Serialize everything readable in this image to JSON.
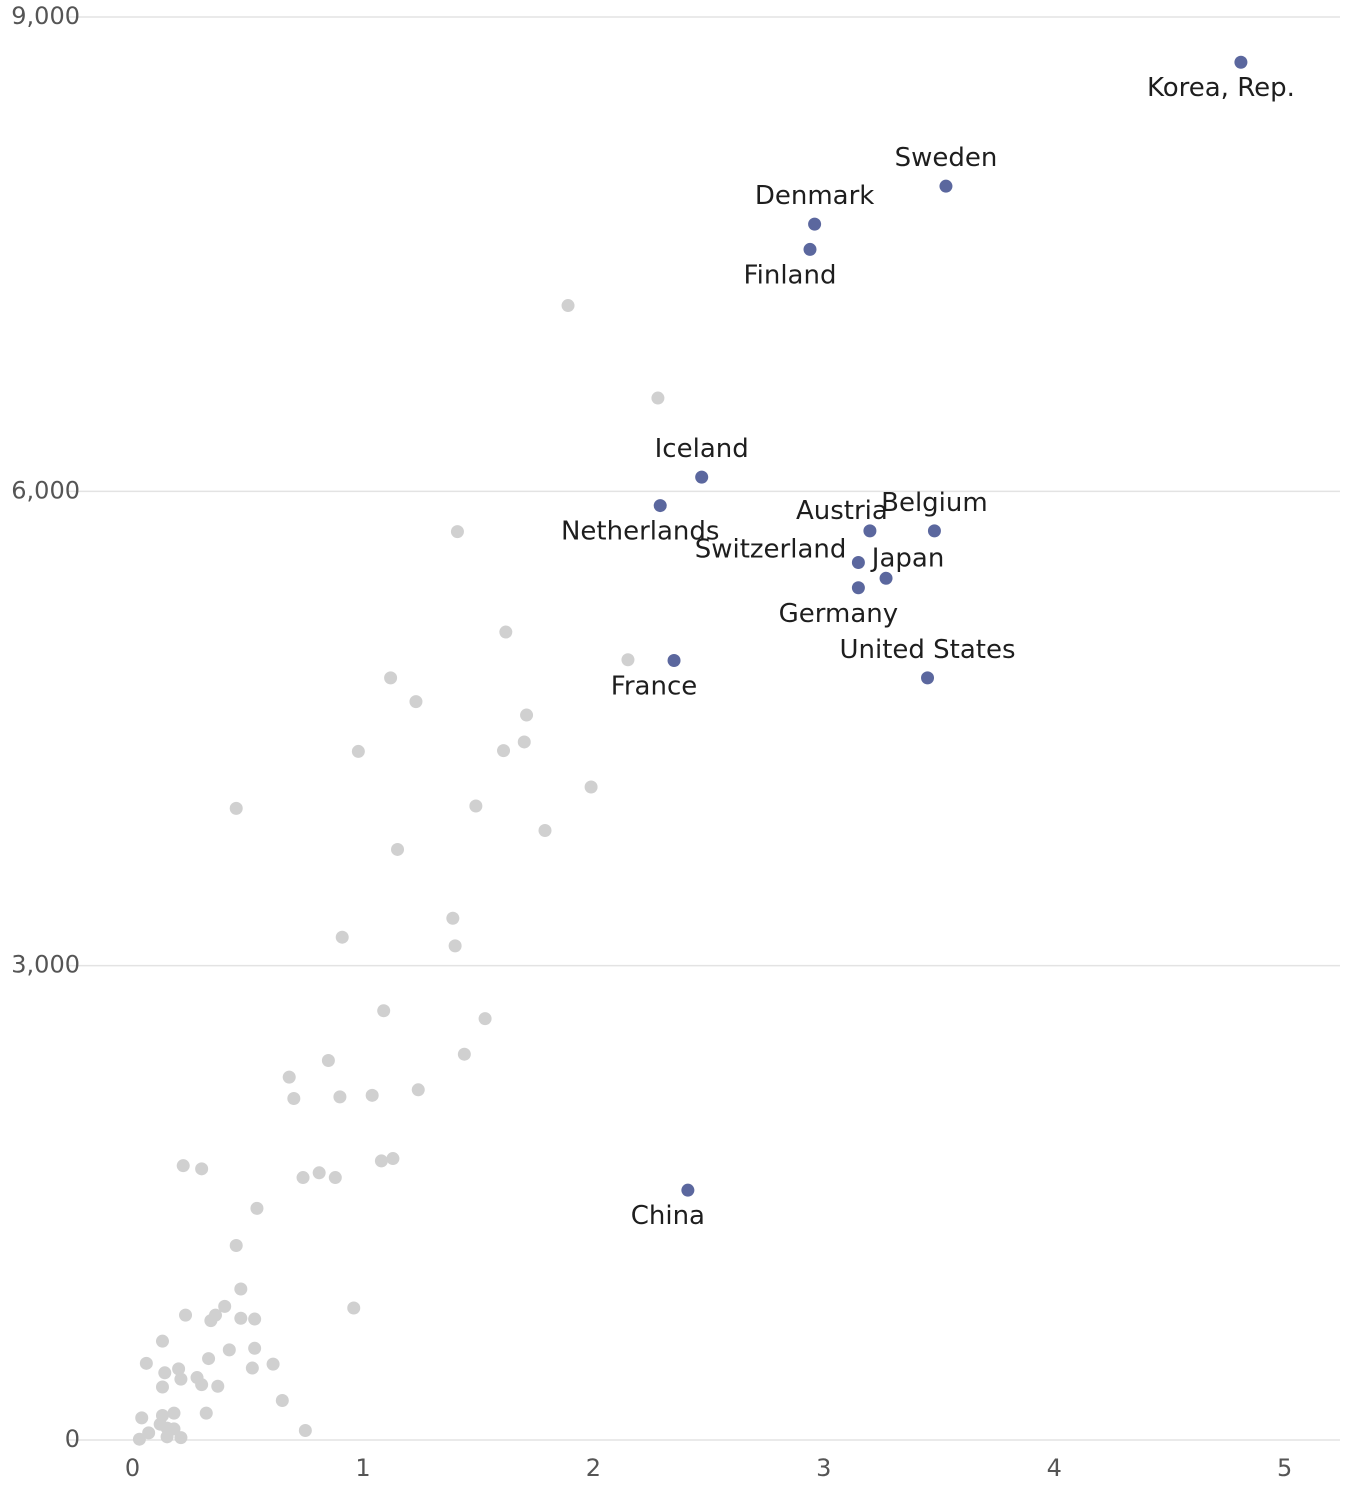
{
  "chart_data": {
    "type": "scatter",
    "title": "",
    "xlabel": "",
    "ylabel": "",
    "xlim": [
      -0.28,
      5.24
    ],
    "ylim": [
      0,
      9000
    ],
    "x_ticks": [
      {
        "value": 0,
        "label": "0"
      },
      {
        "value": 1,
        "label": "1"
      },
      {
        "value": 2,
        "label": "2"
      },
      {
        "value": 3,
        "label": "3"
      },
      {
        "value": 4,
        "label": "4"
      },
      {
        "value": 5,
        "label": "5"
      }
    ],
    "y_ticks": [
      {
        "value": 0,
        "label": "0"
      },
      {
        "value": 3000,
        "label": "3,000"
      },
      {
        "value": 6000,
        "label": "6,000"
      },
      {
        "value": 9000,
        "label": "9,000"
      }
    ],
    "grid": "horizontal",
    "colors": {
      "highlight": "#5b679e",
      "other": "#d0d0d0",
      "gridline": "#e3e3e3",
      "tick_text": "#555555",
      "label_text": "#1e1e1e"
    },
    "highlighted_points": [
      {
        "label": "Korea, Rep.",
        "x": 4.81,
        "y": 8714,
        "label_pos": "below"
      },
      {
        "label": "Sweden",
        "x": 3.53,
        "y": 7930,
        "label_pos": "above"
      },
      {
        "label": "Denmark",
        "x": 2.96,
        "y": 7690,
        "label_pos": "above"
      },
      {
        "label": "Finland",
        "x": 2.94,
        "y": 7530,
        "label_pos": "below-left"
      },
      {
        "label": "Iceland",
        "x": 2.47,
        "y": 6090,
        "label_pos": "above"
      },
      {
        "label": "Netherlands",
        "x": 2.29,
        "y": 5910,
        "label_pos": "below-left"
      },
      {
        "label": "Austria",
        "x": 3.2,
        "y": 5750,
        "label_pos": "above-left"
      },
      {
        "label": "Belgium",
        "x": 3.48,
        "y": 5750,
        "label_pos": "above"
      },
      {
        "label": "Switzerland",
        "x": 3.15,
        "y": 5550,
        "label_pos": "left"
      },
      {
        "label": "Japan",
        "x": 3.27,
        "y": 5450,
        "label_pos": "above-right"
      },
      {
        "label": "Germany",
        "x": 3.15,
        "y": 5390,
        "label_pos": "below-left"
      },
      {
        "label": "France",
        "x": 2.35,
        "y": 4930,
        "label_pos": "below-left"
      },
      {
        "label": "United States",
        "x": 3.45,
        "y": 4820,
        "label_pos": "above"
      },
      {
        "label": "China",
        "x": 2.41,
        "y": 1580,
        "label_pos": "below-left"
      }
    ],
    "other_points": [
      [
        1.89,
        7175
      ],
      [
        2.28,
        6590
      ],
      [
        1.41,
        5745
      ],
      [
        1.62,
        5110
      ],
      [
        1.12,
        4820
      ],
      [
        2.15,
        4935
      ],
      [
        1.23,
        4670
      ],
      [
        1.71,
        4585
      ],
      [
        1.7,
        4415
      ],
      [
        0.98,
        4355
      ],
      [
        1.61,
        4360
      ],
      [
        1.99,
        4130
      ],
      [
        0.45,
        3995
      ],
      [
        1.49,
        4010
      ],
      [
        1.79,
        3855
      ],
      [
        1.15,
        3735
      ],
      [
        1.39,
        3300
      ],
      [
        1.4,
        3125
      ],
      [
        0.91,
        3180
      ],
      [
        1.09,
        2715
      ],
      [
        1.53,
        2665
      ],
      [
        0.85,
        2400
      ],
      [
        1.44,
        2440
      ],
      [
        0.68,
        2295
      ],
      [
        0.7,
        2160
      ],
      [
        0.9,
        2170
      ],
      [
        1.04,
        2180
      ],
      [
        1.24,
        2215
      ],
      [
        0.22,
        1735
      ],
      [
        0.3,
        1715
      ],
      [
        0.74,
        1660
      ],
      [
        0.81,
        1690
      ],
      [
        0.88,
        1660
      ],
      [
        1.08,
        1765
      ],
      [
        1.13,
        1780
      ],
      [
        0.54,
        1465
      ],
      [
        0.45,
        1230
      ],
      [
        0.47,
        955
      ],
      [
        0.4,
        845
      ],
      [
        0.36,
        790
      ],
      [
        0.34,
        755
      ],
      [
        0.23,
        790
      ],
      [
        0.47,
        770
      ],
      [
        0.53,
        765
      ],
      [
        0.96,
        835
      ],
      [
        0.13,
        625
      ],
      [
        0.42,
        570
      ],
      [
        0.53,
        580
      ],
      [
        0.06,
        485
      ],
      [
        0.2,
        450
      ],
      [
        0.33,
        515
      ],
      [
        0.52,
        455
      ],
      [
        0.61,
        480
      ],
      [
        0.14,
        425
      ],
      [
        0.21,
        385
      ],
      [
        0.28,
        395
      ],
      [
        0.3,
        350
      ],
      [
        0.13,
        335
      ],
      [
        0.37,
        340
      ],
      [
        0.65,
        250
      ],
      [
        0.04,
        140
      ],
      [
        0.13,
        155
      ],
      [
        0.18,
        170
      ],
      [
        0.32,
        170
      ],
      [
        0.12,
        100
      ],
      [
        0.15,
        75
      ],
      [
        0.18,
        70
      ],
      [
        0.07,
        45
      ],
      [
        0.15,
        20
      ],
      [
        0.21,
        15
      ],
      [
        0.03,
        5
      ],
      [
        0.75,
        60
      ]
    ]
  }
}
